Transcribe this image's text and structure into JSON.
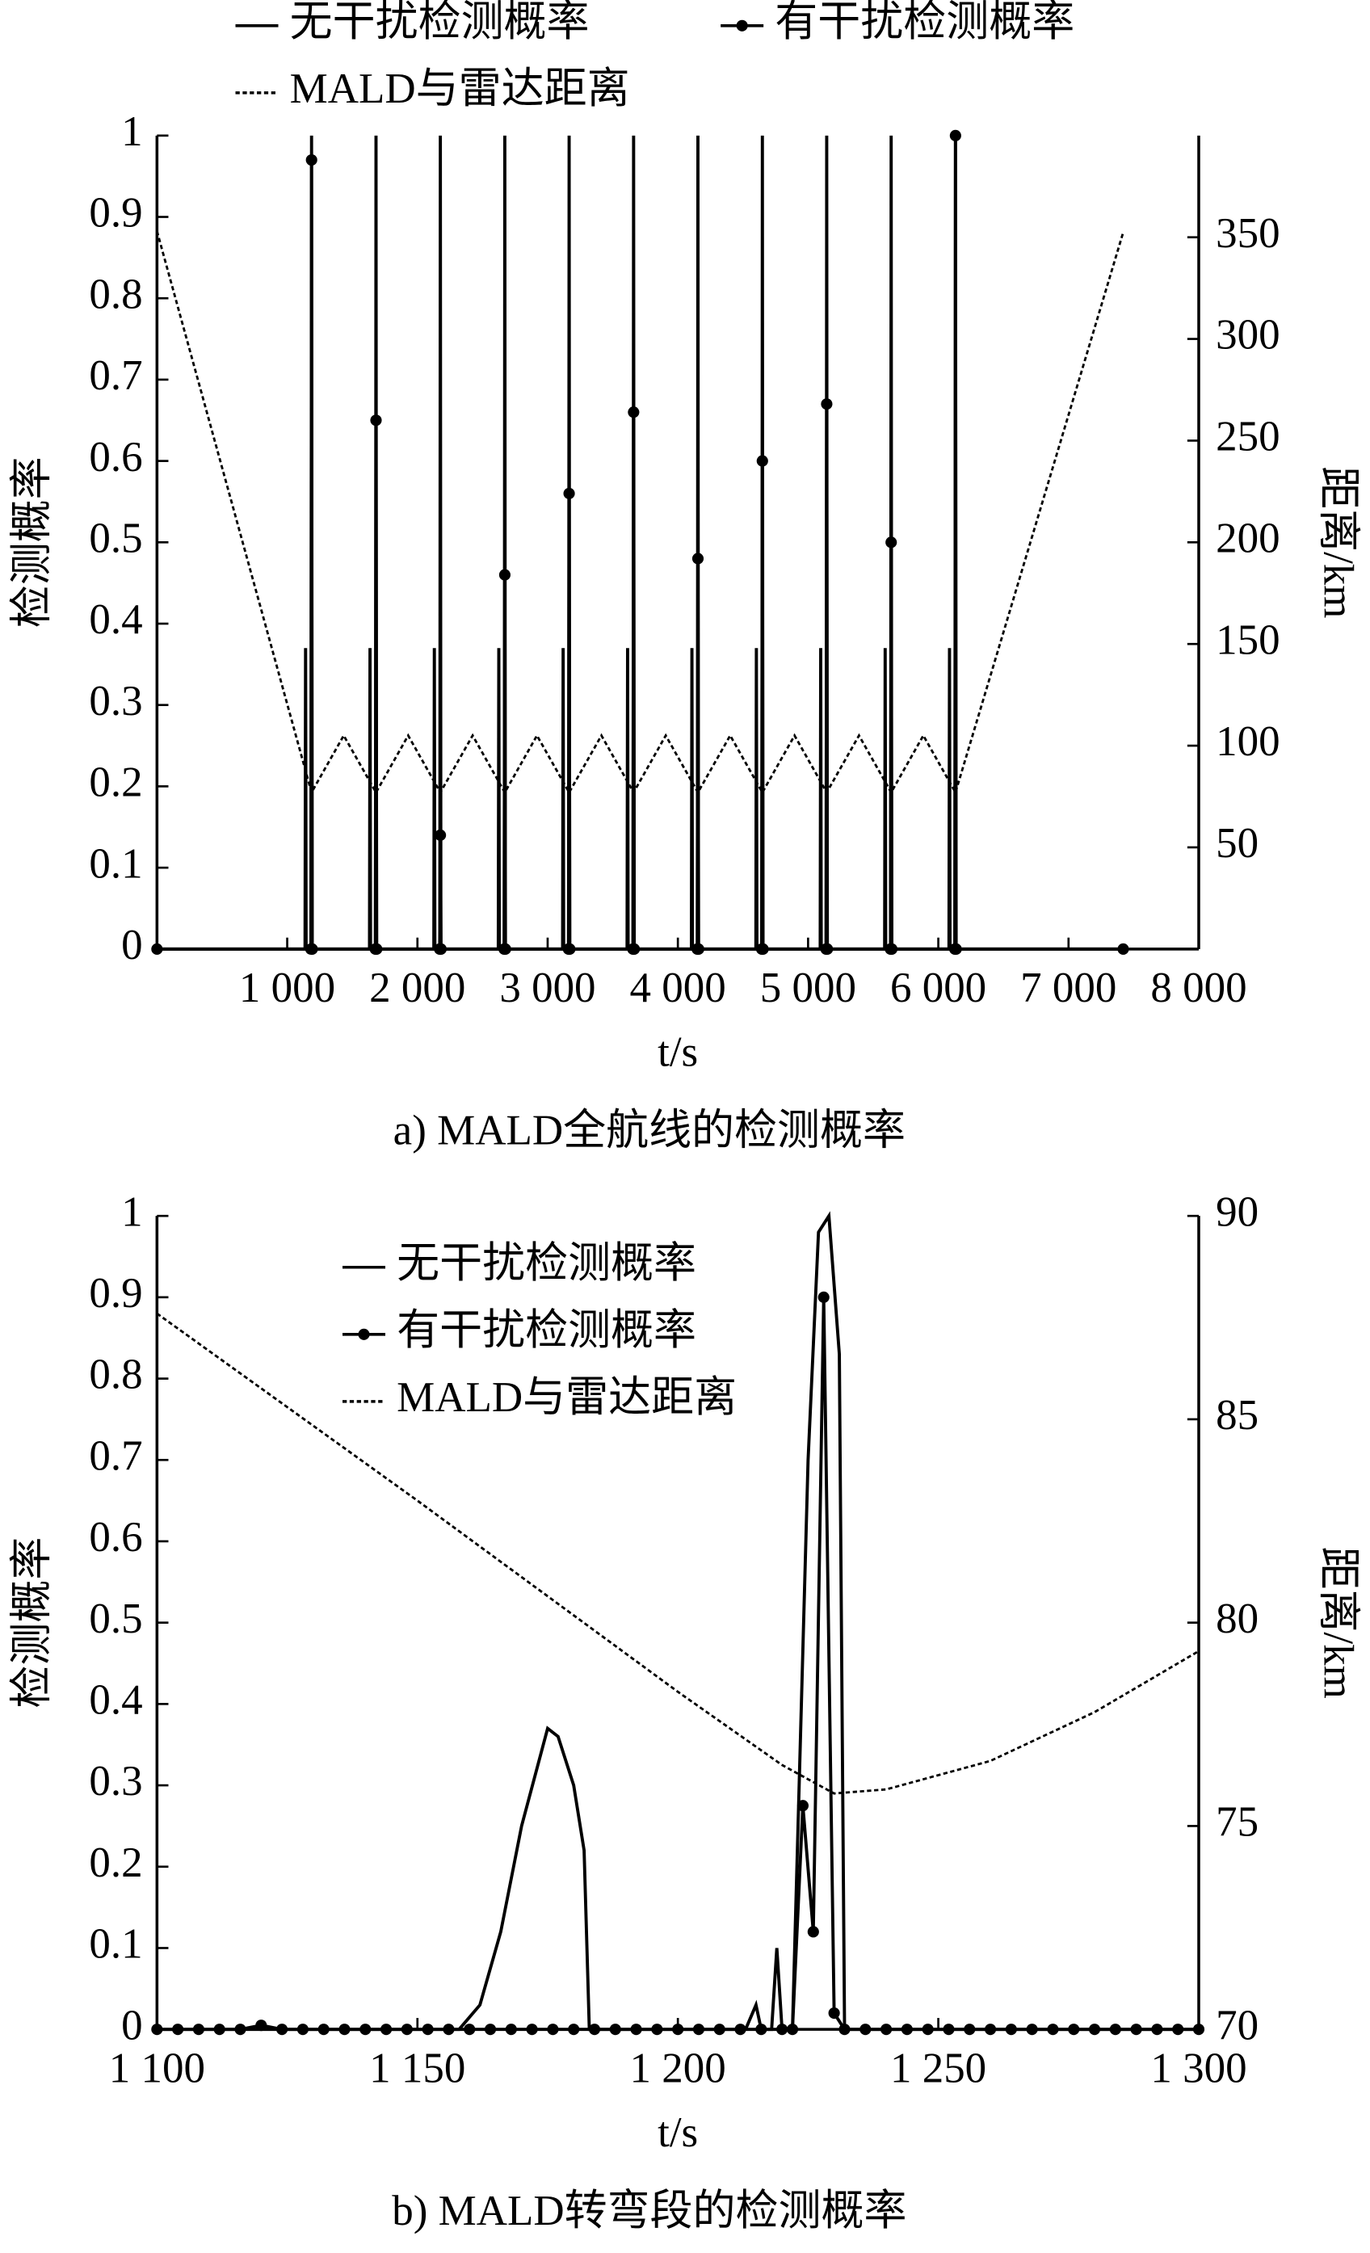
{
  "chart_data": [
    {
      "type": "line",
      "caption": "a) MALD全航线的检测概率",
      "xlabel": "t/s",
      "ylabel": "检测概率",
      "y2label": "距离/km",
      "xlim": [
        0,
        8000
      ],
      "xticks": [
        {
          "value": 1000,
          "label": "1 000"
        },
        {
          "value": 2000,
          "label": "2 000"
        },
        {
          "value": 3000,
          "label": "3 000"
        },
        {
          "value": 4000,
          "label": "4 000"
        },
        {
          "value": 5000,
          "label": "5 000"
        },
        {
          "value": 6000,
          "label": "6 000"
        },
        {
          "value": 7000,
          "label": "7 000"
        },
        {
          "value": 8000,
          "label": "8 000"
        }
      ],
      "ylim": [
        0,
        1
      ],
      "yticks": [
        0,
        0.1,
        0.2,
        0.3,
        0.4,
        0.5,
        0.6,
        0.7,
        0.8,
        0.9,
        1
      ],
      "y2lim": [
        0,
        400
      ],
      "y2ticks": [
        50,
        100,
        150,
        200,
        250,
        300,
        350
      ],
      "legend": "top",
      "series": [
        {
          "name": "无干扰检测概率",
          "color": "#000000",
          "style": "solid",
          "x": [
            0,
            1137,
            1141,
            1145,
            1183,
            1187,
            1191,
            1632,
            1636,
            1640,
            1678,
            1682,
            1686,
            2126,
            2130,
            2134,
            2172,
            2176,
            2180,
            2621,
            2625,
            2629,
            2667,
            2671,
            2675,
            3115,
            3119,
            3123,
            3161,
            3165,
            3169,
            3610,
            3614,
            3618,
            3656,
            3660,
            3664,
            4104,
            4108,
            4112,
            4150,
            4154,
            4158,
            4599,
            4603,
            4607,
            4645,
            4649,
            4653,
            5093,
            5097,
            5101,
            5139,
            5143,
            5147,
            5588,
            5592,
            5596,
            5634,
            5638,
            5642,
            6082,
            6086,
            6090,
            6128,
            6132,
            6136,
            7420
          ],
          "values": [
            0,
            0,
            0.37,
            0,
            0,
            1,
            0,
            0,
            0.37,
            0,
            0,
            1,
            0,
            0,
            0.37,
            0,
            0,
            1,
            0,
            0,
            0.37,
            0,
            0,
            1,
            0,
            0,
            0.37,
            0,
            0,
            1,
            0,
            0,
            0.37,
            0,
            0,
            1,
            0,
            0,
            0.37,
            0,
            0,
            1,
            0,
            0,
            0.37,
            0,
            0,
            1,
            0,
            0,
            0.37,
            0,
            0,
            1,
            0,
            0,
            0.37,
            0,
            0,
            1,
            0,
            0,
            0.37,
            0,
            0,
            1,
            0,
            0
          ]
        },
        {
          "name": "有干扰检测概率",
          "color": "#000000",
          "style": "solid",
          "marker": "circle",
          "x": [
            0,
            1182,
            1187,
            1192,
            1677,
            1682,
            1687,
            2171,
            2176,
            2181,
            2666,
            2671,
            2676,
            3160,
            3165,
            3170,
            3655,
            3660,
            3665,
            4149,
            4154,
            4159,
            4644,
            4649,
            4654,
            5138,
            5143,
            5148,
            5633,
            5638,
            5643,
            6127,
            6132,
            6137,
            7420
          ],
          "values": [
            0,
            0,
            0.97,
            0,
            0,
            0.65,
            0,
            0,
            0.14,
            0,
            0,
            0.46,
            0,
            0,
            0.56,
            0,
            0,
            0.66,
            0,
            0,
            0.48,
            0,
            0,
            0.6,
            0,
            0,
            0.67,
            0,
            0,
            0.5,
            0,
            0,
            1,
            0,
            0
          ]
        },
        {
          "name": "MALD与雷达距离",
          "color": "#000000",
          "style": "dashed",
          "axis": "y2",
          "x": [
            0,
            1187,
            1434,
            1682,
            1929,
            2176,
            2424,
            2671,
            2918,
            3165,
            3413,
            3660,
            3907,
            4154,
            4402,
            4649,
            4896,
            5143,
            5391,
            5638,
            5885,
            6132,
            7418
          ],
          "values": [
            353,
            77,
            105,
            77,
            105,
            77,
            105,
            77,
            105,
            77,
            105,
            77,
            105,
            77,
            105,
            77,
            105,
            77,
            105,
            77,
            105,
            77,
            352
          ]
        }
      ]
    },
    {
      "type": "line",
      "caption": "b) MALD转弯段的检测概率",
      "xlabel": "t/s",
      "ylabel": "检测概率",
      "y2label": "距离/km",
      "xlim": [
        1100,
        1300
      ],
      "xticks": [
        {
          "value": 1100,
          "label": "1 100"
        },
        {
          "value": 1150,
          "label": "1 150"
        },
        {
          "value": 1200,
          "label": "1 200"
        },
        {
          "value": 1250,
          "label": "1 250"
        },
        {
          "value": 1300,
          "label": "1 300"
        }
      ],
      "ylim": [
        0,
        1
      ],
      "yticks": [
        0,
        0.1,
        0.2,
        0.3,
        0.4,
        0.5,
        0.6,
        0.7,
        0.8,
        0.9,
        1
      ],
      "y2lim": [
        70,
        90
      ],
      "y2ticks": [
        70,
        75,
        80,
        85,
        90
      ],
      "legend": "upper left",
      "series": [
        {
          "name": "无干扰检测概率",
          "color": "#000000",
          "style": "solid",
          "x": [
            1100,
            1158,
            1162,
            1166,
            1170,
            1175,
            1177,
            1180,
            1182,
            1183,
            1213,
            1215,
            1216,
            1218,
            1219,
            1220,
            1222,
            1225,
            1227,
            1229,
            1231,
            1232,
            1300
          ],
          "values": [
            0,
            0,
            0.03,
            0.12,
            0.25,
            0.37,
            0.36,
            0.3,
            0.22,
            0,
            0,
            0.03,
            0,
            0,
            0.1,
            0,
            0,
            0.7,
            0.98,
            1,
            0.83,
            0,
            0
          ]
        },
        {
          "name": "有干扰检测概率",
          "color": "#000000",
          "style": "solid",
          "marker": "circle",
          "x": [
            1100,
            1104,
            1108,
            1112,
            1116,
            1120,
            1124,
            1128,
            1132,
            1136,
            1140,
            1144,
            1148,
            1152,
            1156,
            1160,
            1164,
            1168,
            1172,
            1176,
            1180,
            1184,
            1188,
            1192,
            1196,
            1200,
            1204,
            1208,
            1212,
            1216,
            1220,
            1222,
            1224,
            1226,
            1228,
            1230,
            1232,
            1236,
            1240,
            1244,
            1248,
            1252,
            1256,
            1260,
            1264,
            1268,
            1272,
            1276,
            1280,
            1284,
            1288,
            1292,
            1296,
            1300
          ],
          "values": [
            0,
            0,
            0,
            0,
            0,
            0.005,
            0,
            0,
            0,
            0,
            0,
            0,
            0,
            0,
            0,
            0,
            0,
            0,
            0,
            0,
            0,
            0,
            0,
            0,
            0,
            0,
            0,
            0,
            0,
            0,
            0,
            0,
            0.275,
            0.12,
            0.9,
            0.02,
            0,
            0,
            0,
            0,
            0,
            0,
            0,
            0,
            0,
            0,
            0,
            0,
            0,
            0,
            0,
            0,
            0,
            0
          ]
        },
        {
          "name": "MALD与雷达距离",
          "color": "#000000",
          "style": "dashed",
          "axis": "y2",
          "x": [
            1100,
            1150,
            1200,
            1220,
            1230,
            1240,
            1260,
            1280,
            1300
          ],
          "values": [
            87.6,
            83.0,
            78.3,
            76.5,
            75.8,
            75.9,
            76.6,
            77.8,
            79.3
          ]
        }
      ]
    }
  ]
}
